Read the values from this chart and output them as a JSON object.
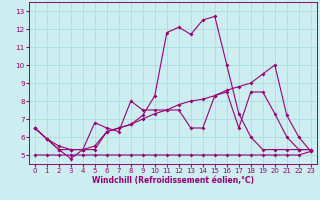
{
  "xlabel": "Windchill (Refroidissement éolien,°C)",
  "background_color": "#cceef0",
  "grid_color": "#aadddd",
  "line_color": "#990077",
  "xlim": [
    -0.5,
    23.5
  ],
  "ylim": [
    4.5,
    13.5
  ],
  "xticks": [
    0,
    1,
    2,
    3,
    4,
    5,
    6,
    7,
    8,
    9,
    10,
    11,
    12,
    13,
    14,
    15,
    16,
    17,
    18,
    19,
    20,
    21,
    22,
    23
  ],
  "yticks": [
    5,
    6,
    7,
    8,
    9,
    10,
    11,
    12,
    13
  ],
  "line1_x": [
    0,
    1,
    2,
    3,
    4,
    5,
    6,
    7,
    8,
    9,
    10,
    11,
    12,
    13,
    14,
    15,
    16,
    17,
    18,
    19,
    20,
    21,
    22,
    23
  ],
  "line1_y": [
    5.0,
    5.0,
    5.0,
    5.0,
    5.0,
    5.0,
    5.0,
    5.0,
    5.0,
    5.0,
    5.0,
    5.0,
    5.0,
    5.0,
    5.0,
    5.0,
    5.0,
    5.0,
    5.0,
    5.0,
    5.0,
    5.0,
    5.0,
    5.2
  ],
  "line2_x": [
    0,
    1,
    2,
    3,
    4,
    5,
    6,
    7,
    8,
    9,
    10,
    11,
    12,
    13,
    14,
    15,
    16,
    17,
    18,
    19,
    20,
    21,
    22,
    23
  ],
  "line2_y": [
    6.5,
    5.9,
    5.3,
    5.3,
    5.3,
    5.3,
    6.3,
    6.5,
    6.7,
    7.0,
    7.3,
    7.5,
    7.8,
    8.0,
    8.1,
    8.3,
    8.6,
    8.8,
    9.0,
    9.5,
    10.0,
    7.2,
    6.0,
    5.2
  ],
  "line3_x": [
    0,
    1,
    2,
    3,
    4,
    5,
    6,
    7,
    8,
    9,
    10,
    11,
    12,
    13,
    14,
    15,
    16,
    17,
    18,
    19,
    20,
    21,
    22,
    23
  ],
  "line3_y": [
    6.5,
    5.9,
    5.3,
    4.8,
    5.3,
    6.8,
    6.5,
    6.3,
    8.0,
    7.5,
    7.5,
    7.5,
    7.5,
    6.5,
    6.5,
    8.3,
    8.5,
    6.5,
    8.5,
    8.5,
    7.3,
    6.0,
    5.3,
    5.3
  ],
  "line4_x": [
    0,
    1,
    2,
    3,
    4,
    5,
    6,
    7,
    8,
    9,
    10,
    11,
    12,
    13,
    14,
    15,
    16,
    17,
    18,
    19,
    20,
    21,
    22,
    23
  ],
  "line4_y": [
    6.5,
    5.9,
    5.5,
    5.3,
    5.3,
    5.5,
    6.3,
    6.5,
    6.7,
    7.2,
    8.3,
    11.8,
    12.1,
    11.7,
    12.5,
    12.7,
    10.0,
    7.3,
    6.0,
    5.3,
    5.3,
    5.3,
    5.3,
    5.3
  ]
}
